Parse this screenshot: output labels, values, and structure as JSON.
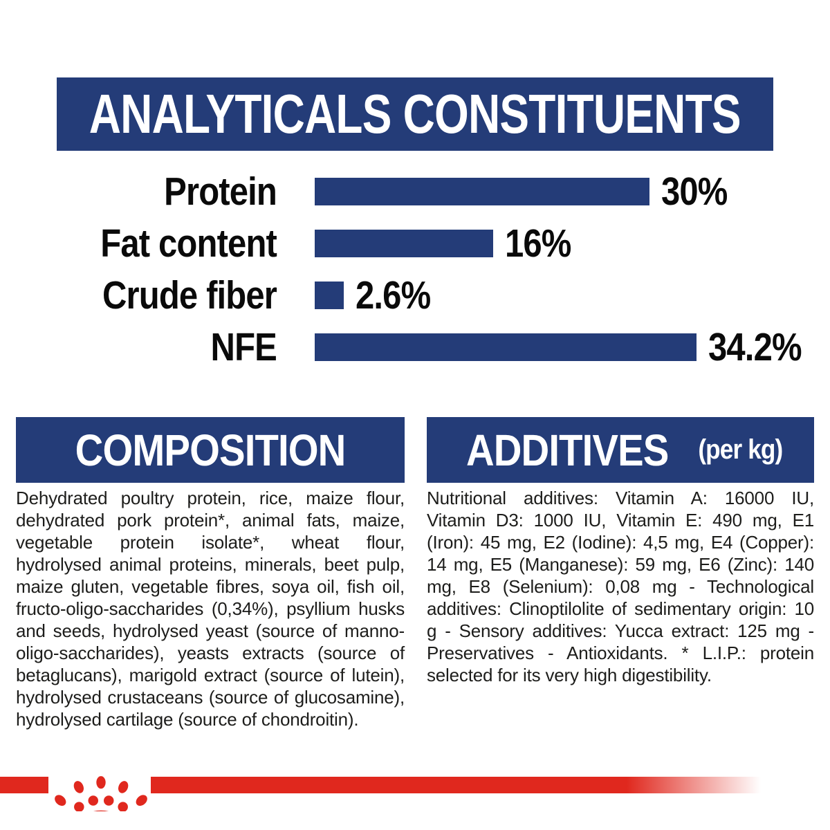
{
  "colors": {
    "navy": "#243C78",
    "red": "#E0281E",
    "body_text": "#1D1D1B",
    "background": "#FFFFFF"
  },
  "chart_data": {
    "type": "bar",
    "orientation": "horizontal",
    "title": "ANALYTICALS CONSTITUENTS",
    "categories": [
      "Protein",
      "Fat content",
      "Crude fiber",
      "NFE"
    ],
    "values": [
      30,
      16,
      2.6,
      34.2
    ],
    "value_labels": [
      "30%",
      "16%",
      "2.6%",
      "34.2%"
    ],
    "unit": "%",
    "xlim": [
      0,
      36
    ],
    "bar_color": "#243C78",
    "grid": false,
    "legend": "none"
  },
  "sections": {
    "composition": {
      "title": "COMPOSITION",
      "body": "Dehydrated poultry protein, rice, maize flour, dehydrated pork protein*, animal fats, maize, vegetable protein isolate*, wheat flour, hydrolysed animal proteins, minerals, beet pulp, maize gluten, vegetable fibres, soya oil, fish oil, fructo-oligo-saccharides (0,34%), psyllium husks and seeds, hydrolysed yeast (source of manno-oligo-saccharides), yeasts extracts (source of betaglucans), marigold extract (source of lutein), hydrolysed crustaceans (source of glucosamine), hydrolysed cartilage (source of chondroitin)."
    },
    "additives": {
      "title": "ADDITIVES",
      "suffix": "(per kg)",
      "body": "Nutritional additives: Vitamin A: 16000 IU, Vitamin D3: 1000 IU, Vitamin E: 490 mg, E1 (Iron): 45 mg, E2 (Iodine): 4,5 mg, E4 (Copper): 14 mg, E5 (Manganese): 59 mg, E6 (Zinc): 140 mg, E8 (Selenium): 0,08 mg - Technological additives: Clinoptilolite of sedimentary origin: 10 g - Sensory additives: Yucca extract: 125 mg - Preservatives - Antioxidants. * L.I.P.: protein selected for its very high digestibility."
    }
  },
  "footer": {
    "brand_mark": "royal-canin-crown-logo"
  }
}
